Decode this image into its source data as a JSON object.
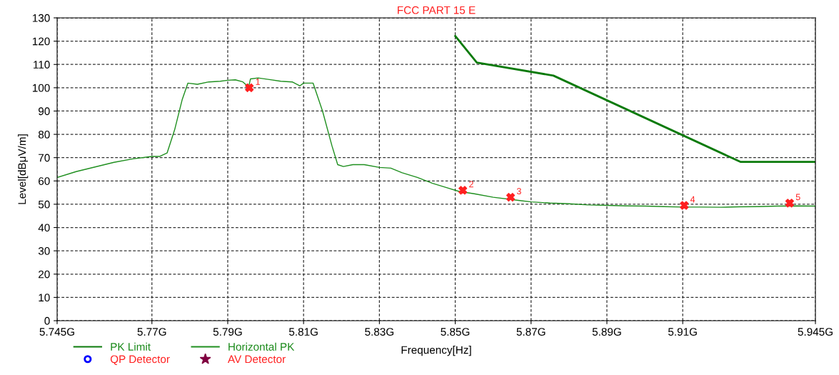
{
  "chart_data": {
    "type": "line",
    "title": "FCC PART 15 E",
    "xlabel": "Frequency[Hz]",
    "ylabel": "Level[dBμV/m]",
    "xlim": [
      5.745,
      5.945
    ],
    "xticks": [
      {
        "value": 5.745,
        "label": "5.745G"
      },
      {
        "value": 5.77,
        "label": "5.77G"
      },
      {
        "value": 5.79,
        "label": "5.79G"
      },
      {
        "value": 5.81,
        "label": "5.81G"
      },
      {
        "value": 5.83,
        "label": "5.83G"
      },
      {
        "value": 5.85,
        "label": "5.85G"
      },
      {
        "value": 5.87,
        "label": "5.87G"
      },
      {
        "value": 5.89,
        "label": "5.89G"
      },
      {
        "value": 5.91,
        "label": "5.91G"
      },
      {
        "value": 5.945,
        "label": "5.945G"
      }
    ],
    "ylim": [
      0,
      130
    ],
    "yticks": [
      0,
      10,
      20,
      30,
      40,
      50,
      60,
      70,
      80,
      90,
      100,
      110,
      120,
      130
    ],
    "grid": true,
    "legend": "bottom left",
    "line_style": "solid",
    "series": [
      {
        "name": "PK Limit",
        "color": "#0a7a0a",
        "x": [
          5.85,
          5.8557,
          5.8759,
          5.9252,
          5.945
        ],
        "values": [
          122.2,
          110.8,
          105.2,
          68.2,
          68.2
        ]
      },
      {
        "name": "Horizontal PK",
        "color": "#1f8f1f",
        "x": [
          5.745,
          5.75,
          5.755,
          5.76,
          5.765,
          5.77,
          5.772,
          5.774,
          5.776,
          5.778,
          5.7795,
          5.782,
          5.785,
          5.788,
          5.79,
          5.792,
          5.794,
          5.7955,
          5.796,
          5.798,
          5.801,
          5.804,
          5.807,
          5.809,
          5.81,
          5.8125,
          5.815,
          5.8175,
          5.819,
          5.8205,
          5.823,
          5.826,
          5.83,
          5.833,
          5.836,
          5.84,
          5.844,
          5.848,
          5.851,
          5.855,
          5.86,
          5.867,
          5.87,
          5.875,
          5.88,
          5.885,
          5.89,
          5.895,
          5.9,
          5.905,
          5.91,
          5.915,
          5.92,
          5.925,
          5.93,
          5.935,
          5.94,
          5.945
        ],
        "values": [
          61.5,
          64,
          66,
          68,
          69.5,
          70.5,
          70.5,
          72,
          82,
          95,
          102,
          101.5,
          102.5,
          102.8,
          103.2,
          103.4,
          102.5,
          100.3,
          103.8,
          104.2,
          103.5,
          102.8,
          102.5,
          100.8,
          102,
          102,
          90,
          75,
          67,
          66.2,
          67,
          67,
          65.8,
          65.5,
          63.5,
          61.5,
          59,
          57,
          55.5,
          54.5,
          53,
          51.6,
          51,
          50.5,
          50.2,
          49.7,
          49.5,
          49.3,
          49.2,
          49,
          48.8,
          48.8,
          48.7,
          48.9,
          49,
          49.2,
          49.3,
          49.2
        ]
      },
      {
        "type": "scatter",
        "color": "#ff2020",
        "marker": "cross",
        "x": [
          5.7957,
          5.852,
          5.8646,
          5.9104,
          5.9382
        ],
        "values": [
          100,
          56,
          53,
          49.5,
          50.5
        ]
      },
      {
        "name": "QP Detector",
        "type": "scatter",
        "color": "#0000ff",
        "marker": "circle"
      },
      {
        "name": "AV Detector",
        "type": "scatter",
        "color": "#800040",
        "marker": "star"
      }
    ],
    "annotations": [
      {
        "text": "1",
        "x": 5.7957,
        "y": 100
      },
      {
        "text": "2",
        "x": 5.852,
        "y": 56
      },
      {
        "text": "3",
        "x": 5.8646,
        "y": 53
      },
      {
        "text": "4",
        "x": 5.9104,
        "y": 49.5
      },
      {
        "text": "5",
        "x": 5.9382,
        "y": 50.5
      }
    ]
  }
}
